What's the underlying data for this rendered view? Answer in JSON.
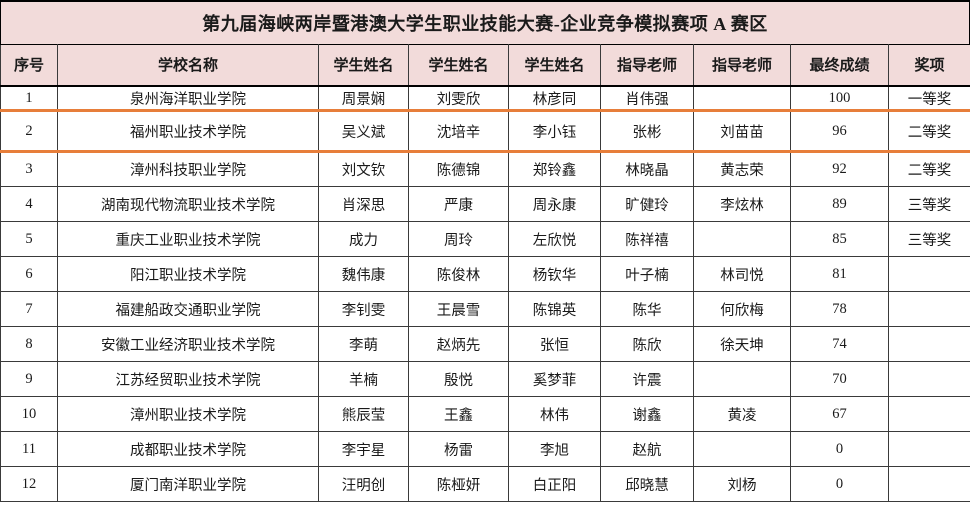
{
  "title": "第九届海峡两岸暨港澳大学生职业技能大赛-企业竞争模拟赛项 A 赛区",
  "table": {
    "headers": [
      "序号",
      "学校名称",
      "学生姓名",
      "学生姓名",
      "学生姓名",
      "指导老师",
      "指导老师",
      "最终成绩",
      "奖项"
    ],
    "rows": [
      [
        "1",
        "泉州海洋职业学院",
        "周景娴",
        "刘雯欣",
        "林彦同",
        "肖伟强",
        "",
        "100",
        "一等奖"
      ],
      [
        "2",
        "福州职业技术学院",
        "吴义斌",
        "沈培辛",
        "李小钰",
        "张彬",
        "刘苗苗",
        "96",
        "二等奖"
      ],
      [
        "3",
        "漳州科技职业学院",
        "刘文钦",
        "陈德锦",
        "郑铃鑫",
        "林晓晶",
        "黄志荣",
        "92",
        "二等奖"
      ],
      [
        "4",
        "湖南现代物流职业技术学院",
        "肖深思",
        "严康",
        "周永康",
        "旷健玲",
        "李炫林",
        "89",
        "三等奖"
      ],
      [
        "5",
        "重庆工业职业技术学院",
        "成力",
        "周玲",
        "左欣悦",
        "陈祥禧",
        "",
        "85",
        "三等奖"
      ],
      [
        "6",
        "阳江职业技术学院",
        "魏伟康",
        "陈俊林",
        "杨钦华",
        "叶子楠",
        "林司悦",
        "81",
        ""
      ],
      [
        "7",
        "福建船政交通职业学院",
        "李钊雯",
        "王晨雪",
        "陈锦英",
        "陈华",
        "何欣梅",
        "78",
        ""
      ],
      [
        "8",
        "安徽工业经济职业技术学院",
        "李萌",
        "赵炳先",
        "张恒",
        "陈欣",
        "徐天坤",
        "74",
        ""
      ],
      [
        "9",
        "江苏经贸职业技术学院",
        "羊楠",
        "殷悦",
        "奚梦菲",
        "许震",
        "",
        "70",
        ""
      ],
      [
        "10",
        "漳州职业技术学院",
        "熊辰莹",
        "王鑫",
        "林伟",
        "谢鑫",
        "黄凌",
        "67",
        ""
      ],
      [
        "11",
        "成都职业技术学院",
        "李宇星",
        "杨雷",
        "李旭",
        "赵航",
        "",
        "0",
        ""
      ],
      [
        "12",
        "厦门南洋职业学院",
        "汪明创",
        "陈桠妍",
        "白正阳",
        "邱晓慧",
        "刘杨",
        "0",
        ""
      ]
    ]
  },
  "colors": {
    "header_bg": "#F2DBDA",
    "border": "#3a3a3a",
    "highlight_line": "#E77E3A"
  },
  "annotations": {
    "highlight_lines_after_rows": [
      1,
      2
    ]
  }
}
